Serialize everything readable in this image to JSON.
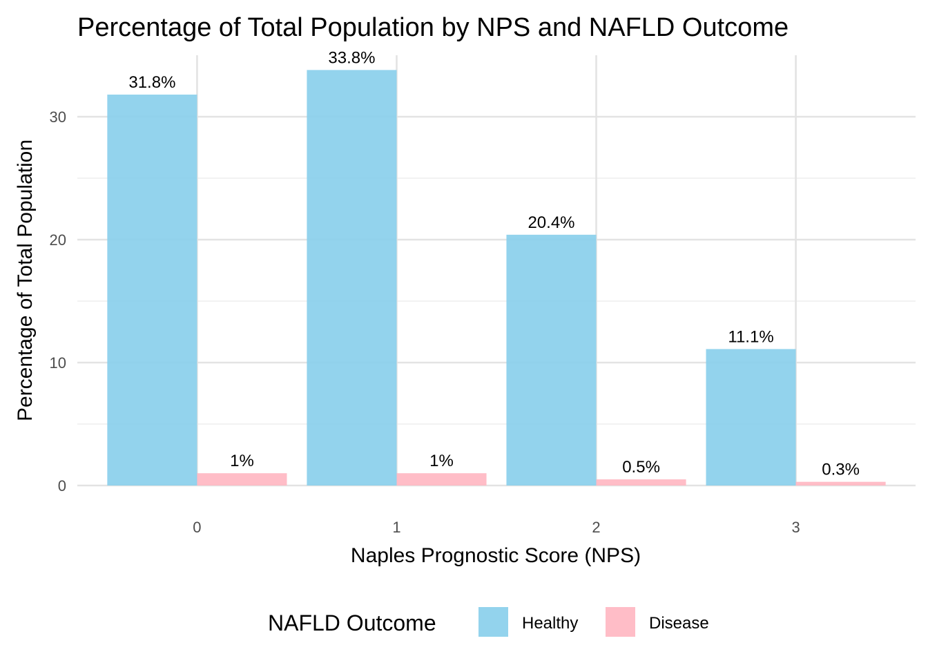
{
  "chart_data": {
    "type": "bar",
    "title": "Percentage of Total Population by NPS and NAFLD Outcome",
    "xlabel": "Naples Prognostic Score (NPS)",
    "ylabel": "Percentage of Total Population",
    "categories": [
      "0",
      "1",
      "2",
      "3"
    ],
    "ylim": [
      0,
      35
    ],
    "yticks": [
      0,
      10,
      20,
      30
    ],
    "grid": true,
    "legend": {
      "title": "NAFLD Outcome",
      "position": "bottom"
    },
    "series": [
      {
        "name": "Healthy",
        "color": "#87CEEB",
        "values": [
          31.8,
          33.8,
          20.4,
          11.1
        ],
        "labels": [
          "31.8%",
          "33.8%",
          "20.4%",
          "11.1%"
        ]
      },
      {
        "name": "Disease",
        "color": "#FFB6C1",
        "values": [
          1.0,
          1.0,
          0.5,
          0.3
        ],
        "labels": [
          "1%",
          "1%",
          "0.5%",
          "0.3%"
        ]
      }
    ]
  }
}
